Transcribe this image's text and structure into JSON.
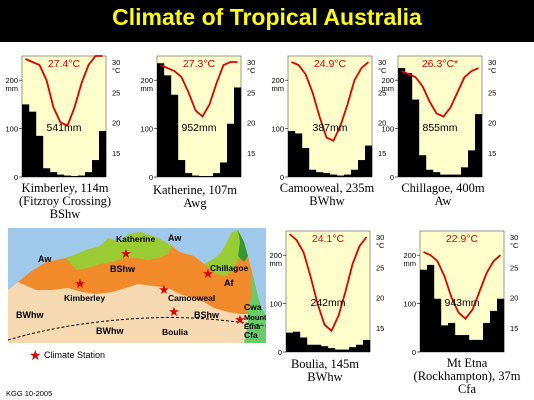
{
  "title": "Climate of Tropical Australia",
  "colors": {
    "panel": "#ffffcc",
    "temp": "#e00000",
    "bar": "#000000",
    "title": "#ffff00"
  },
  "footer": "KGG  10-2005",
  "map": {
    "labels": {
      "katherine": "Katherine",
      "aw_n": "Aw",
      "aw_w": "Aw",
      "bshw": "BShw",
      "chillagoe": "Chillagoe",
      "af": "Af",
      "kimberley": "Kimberley",
      "camooweal": "Camooweal",
      "bwhw_w": "BWhw",
      "bwhw_c": "BWhw",
      "boulia": "Boulia",
      "bshw_e": "BShw",
      "cwa": "Cwa",
      "mount": "Mount",
      "etna": "Etna",
      "cfa": "Cfa"
    },
    "legend": "Climate Station"
  },
  "chart_data": [
    {
      "type": "bar+line",
      "station": "Kimberley, 114m",
      "caption": [
        "Kimberley, 114m",
        "(Fitzroy Crossing)",
        "BShw"
      ],
      "temp_label": "27.4°C",
      "precip_label": "541mm",
      "temp_axis": {
        "unit": "°C",
        "ticks": [
          "30",
          "25",
          "20",
          "15"
        ],
        "ylim": [
          10,
          30
        ]
      },
      "precip_axis": {
        "unit": "mm",
        "ticks": [
          "200",
          "100",
          "0"
        ],
        "ylim": [
          0,
          250
        ]
      },
      "precip": [
        150,
        135,
        85,
        18,
        10,
        5,
        3,
        2,
        3,
        10,
        35,
        95
      ],
      "temp": [
        30.5,
        30,
        29.5,
        27,
        22.5,
        20,
        19.5,
        22.5,
        26.5,
        29.5,
        31,
        31
      ]
    },
    {
      "type": "bar+line",
      "station": "Katherine, 107m",
      "caption": [
        "Katherine, 107m",
        "Awg"
      ],
      "temp_label": "27.3°C",
      "precip_label": "952mm",
      "temp_axis": {
        "unit": "°C",
        "ticks": [
          "30",
          "25",
          "20",
          "15"
        ],
        "ylim": [
          10,
          30
        ]
      },
      "precip_axis": {
        "unit": "mm",
        "ticks": [
          "200",
          "100",
          "0"
        ],
        "ylim": [
          0,
          250
        ]
      },
      "precip": [
        235,
        210,
        170,
        35,
        8,
        3,
        2,
        2,
        8,
        30,
        110,
        185
      ],
      "temp": [
        29.5,
        29,
        28.5,
        27.5,
        25,
        22,
        21,
        23,
        26.5,
        29.5,
        30,
        30
      ]
    },
    {
      "type": "bar+line",
      "station": "Camooweal, 235m",
      "caption": [
        "Camooweal, 235m",
        "BWhw"
      ],
      "temp_label": "24.9°C",
      "precip_label": "387mm",
      "temp_axis": {
        "unit": "°C",
        "ticks": [
          "30",
          "25",
          "20",
          "15"
        ],
        "ylim": [
          10,
          30
        ]
      },
      "precip_axis": {
        "unit": "mm",
        "ticks": [
          "200",
          "100",
          "0"
        ],
        "ylim": [
          0,
          250
        ]
      },
      "precip": [
        95,
        90,
        60,
        15,
        10,
        8,
        5,
        3,
        5,
        15,
        35,
        65
      ],
      "temp": [
        30,
        29.5,
        28,
        25,
        21,
        17.5,
        17,
        19.5,
        23,
        27,
        29,
        30
      ]
    },
    {
      "type": "bar+line",
      "station": "Chillagoe, 400m",
      "caption": [
        "Chillagoe, 400m",
        "Aw"
      ],
      "temp_label": "26.3°C*",
      "precip_label": "855mm",
      "temp_axis": {
        "unit": "°C",
        "ticks": [
          "30",
          "25",
          "20",
          "15"
        ],
        "ylim": [
          10,
          30
        ]
      },
      "precip_axis": {
        "unit": "mm",
        "ticks": [
          "200",
          "100",
          "0"
        ],
        "ylim": [
          0,
          250
        ]
      },
      "precip": [
        225,
        215,
        160,
        45,
        15,
        10,
        5,
        5,
        5,
        20,
        55,
        130
      ],
      "temp": [
        28.5,
        28,
        27.5,
        26,
        23.5,
        21.5,
        21,
        22.5,
        25,
        27.5,
        28.5,
        29
      ]
    },
    {
      "type": "bar+line",
      "station": "Boulia, 145m",
      "caption": [
        "Boulia, 145m",
        "BWhw"
      ],
      "temp_label": "24.1°C",
      "precip_label": "242mm",
      "temp_axis": {
        "unit": "°C",
        "ticks": [
          "30",
          "25",
          "20",
          "15"
        ],
        "ylim": [
          10,
          30
        ]
      },
      "precip_axis": {
        "unit": "mm",
        "ticks": [
          "200",
          "100",
          "0"
        ],
        "ylim": [
          0,
          250
        ]
      },
      "precip": [
        40,
        42,
        30,
        15,
        15,
        12,
        8,
        5,
        5,
        10,
        15,
        25
      ],
      "temp": [
        30.5,
        29.5,
        27.5,
        23.5,
        19,
        15.5,
        14.5,
        17,
        21,
        25.5,
        28.5,
        30
      ]
    },
    {
      "type": "bar+line",
      "station": "Mt Etna (Rockhampton), 37m",
      "caption": [
        "Mt Etna",
        "(Rockhampton), 37m",
        "Cfa"
      ],
      "temp_label": "22.9°C",
      "precip_label": "943mm",
      "temp_axis": {
        "unit": "°C",
        "ticks": [
          "30",
          "25",
          "20",
          "15"
        ],
        "ylim": [
          10,
          30
        ]
      },
      "precip_axis": {
        "unit": "mm",
        "ticks": [
          "200",
          "100",
          "0"
        ],
        "ylim": [
          0,
          250
        ]
      },
      "precip": [
        170,
        180,
        110,
        55,
        60,
        35,
        35,
        25,
        25,
        60,
        85,
        110
      ],
      "temp": [
        27.5,
        27,
        26,
        23.5,
        20,
        17.5,
        16.5,
        18,
        21,
        24,
        26,
        27
      ]
    }
  ]
}
